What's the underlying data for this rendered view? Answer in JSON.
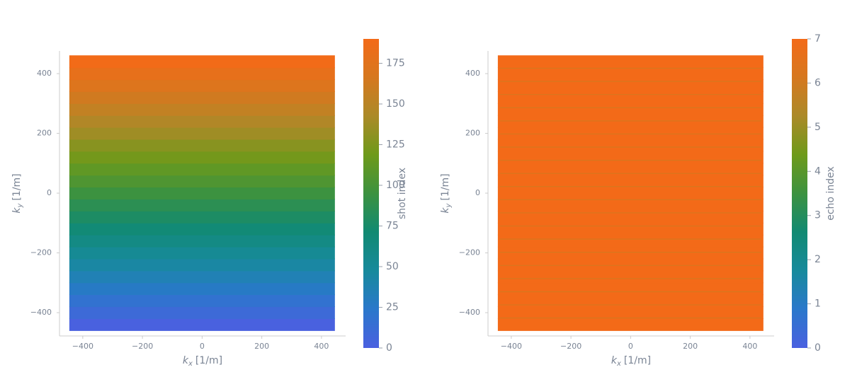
{
  "chart_data": [
    {
      "type": "trajectory",
      "xlabel": [
        "k",
        "x",
        "[1/m]"
      ],
      "ylabel": [
        "k",
        "y",
        "[1/m]"
      ],
      "xlim": [
        -478,
        481
      ],
      "ylim": [
        -478,
        476
      ],
      "xticks": [
        {
          "value": -400,
          "label": "−400"
        },
        {
          "value": -200,
          "label": "−200"
        },
        0,
        200,
        400
      ],
      "yticks": [
        {
          "value": -400,
          "label": "−400"
        },
        {
          "value": -200,
          "label": "−200"
        },
        0,
        200,
        400
      ],
      "kx": [
        -445,
        445
      ],
      "rows": {
        "y": [
          -440,
          -400,
          -360,
          -320,
          -280,
          -240,
          -200,
          -160,
          -120,
          -80,
          -40,
          0,
          40,
          80,
          120,
          160,
          200,
          240,
          280,
          320,
          360,
          400,
          440
        ],
        "values": [
          1,
          10,
          18,
          27,
          35,
          44,
          52,
          61,
          69,
          78,
          86,
          95,
          104,
          112,
          121,
          129,
          138,
          146,
          155,
          163,
          172,
          180,
          189
        ]
      },
      "colorbar": {
        "label": "shot index",
        "clim": [
          0,
          190
        ],
        "ticks": [
          0,
          25,
          50,
          75,
          100,
          125,
          150,
          175
        ]
      },
      "colormap": [
        "#4a60e0",
        "#2a78cb",
        "#178a9c",
        "#118a72",
        "#3c9240",
        "#6e9a1a",
        "#ab8a28",
        "#d6781f",
        "#f36a18"
      ]
    },
    {
      "type": "trajectory",
      "xlabel": [
        "k",
        "x",
        "[1/m]"
      ],
      "ylabel": [
        "k",
        "y",
        "[1/m]"
      ],
      "xlim": [
        -478,
        481
      ],
      "ylim": [
        -478,
        476
      ],
      "xticks": [
        {
          "value": -400,
          "label": "−400"
        },
        {
          "value": -200,
          "label": "−200"
        },
        0,
        200,
        400
      ],
      "yticks": [
        {
          "value": -400,
          "label": "−400"
        },
        {
          "value": -200,
          "label": "−200"
        },
        0,
        200,
        400
      ],
      "kx": [
        -445,
        445
      ],
      "rows": {
        "y": [
          -440,
          -400,
          -360,
          -320,
          -280,
          -240,
          -200,
          -160,
          -120,
          -80,
          -40,
          0,
          40,
          80,
          120,
          160,
          200,
          240,
          280,
          320,
          360,
          400,
          440
        ],
        "values": [
          7,
          7,
          7,
          7,
          7,
          7,
          7,
          7,
          7,
          7,
          7,
          7,
          7,
          7,
          7,
          7,
          7,
          7,
          7,
          7,
          7,
          7,
          7
        ]
      },
      "lines": {
        "y": [
          -418,
          -374,
          -330,
          -286,
          -242,
          -198,
          -154,
          -110,
          -66,
          -22,
          22,
          66,
          110,
          154,
          198,
          242,
          286,
          330,
          374,
          418
        ],
        "values": [
          6,
          6,
          6,
          6,
          6,
          6,
          6,
          6,
          6,
          6,
          6,
          6,
          6,
          6,
          6,
          6,
          6,
          6,
          6,
          6
        ]
      },
      "colorbar": {
        "label": "echo index",
        "clim": [
          0,
          7
        ],
        "ticks": [
          0,
          1,
          2,
          3,
          4,
          5,
          6,
          7
        ]
      },
      "colormap": [
        "#4a60e0",
        "#2a78cb",
        "#178a9c",
        "#118a72",
        "#3c9240",
        "#6e9a1a",
        "#ab8a28",
        "#d6781f",
        "#f36a18"
      ]
    }
  ]
}
